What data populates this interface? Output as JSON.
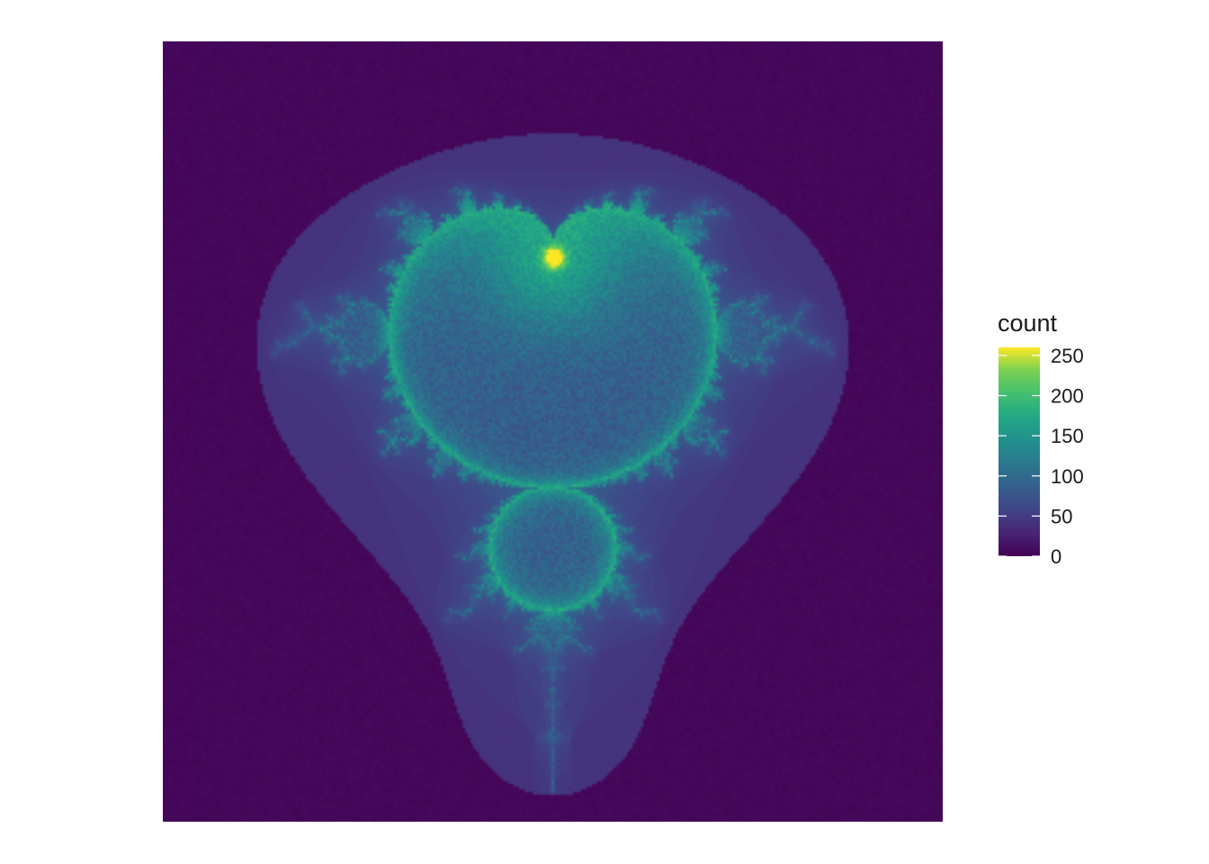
{
  "chart_data": {
    "type": "heatmap",
    "title": "",
    "xlabel": "",
    "ylabel": "",
    "grid": false,
    "axes_visible": false,
    "legend": {
      "title": "count",
      "placement": "right",
      "colormap": "viridis",
      "range": [
        0,
        260
      ],
      "ticks": [
        0,
        50,
        100,
        150,
        200,
        250
      ],
      "tick_labels": [
        "0",
        "50",
        "100",
        "150",
        "200",
        "250"
      ]
    },
    "description_shape": "buddhabrot",
    "colors": {
      "low": "#440154",
      "mid": "#21918c",
      "high": "#fde725"
    }
  }
}
